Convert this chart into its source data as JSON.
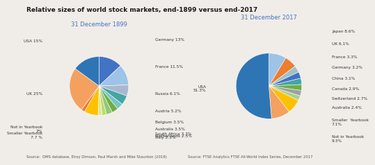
{
  "title": "Relative sizes of world stock markets, end-1899 versus end-2017",
  "title_fontsize": 6.5,
  "bg_color": "#f0ede8",
  "chart1_subtitle": "31 December 1899",
  "chart2_subtitle": "31 December 2017",
  "chart1_source": "Source:  DMS database, Elroy Dimson, Paul Marsh and Mike Staunton (2018)",
  "chart2_source": "Source: FTSE Analytics FTSE All-World Index Series, December 2017",
  "chart1_values": [
    13,
    11.5,
    6.1,
    5.2,
    3.5,
    3.5,
    3.3,
    2.5,
    2.1,
    7.7,
    2,
    25,
    15
  ],
  "chart1_colors": [
    "#4472c4",
    "#9dc3e6",
    "#a9b8d0",
    "#44a5a5",
    "#77c5c5",
    "#70ad47",
    "#90c878",
    "#c0d870",
    "#d8e890",
    "#ffc000",
    "#ed7d31",
    "#f4a160",
    "#2e75b6"
  ],
  "chart1_label_texts": [
    "Germany 13%",
    "France 11.5%",
    "Russia 6.1%",
    "Austria 5.2%",
    "Belgium 3.5%",
    "Australia 3.5%",
    "South Africa 3.3%",
    "Netherlands 2.5%",
    "Italy 2.1%",
    "Smaller Yearbook\n7.7 %",
    "Not in Yearbook\n2%",
    "UK 25%",
    "USA 15%"
  ],
  "chart2_values": [
    8.6,
    6.1,
    3.3,
    3.2,
    3.1,
    2.9,
    2.7,
    2.4,
    7.1,
    9.3,
    51.3
  ],
  "chart2_colors": [
    "#9dc3e6",
    "#ed7d31",
    "#9dc3c8",
    "#4472c4",
    "#44a5a5",
    "#70ad47",
    "#a0a0a0",
    "#a9d18e",
    "#ffc000",
    "#f4a160",
    "#2e75b6"
  ],
  "chart2_label_texts": [
    "Japan 8.6%",
    "UK 6.1%",
    "France 3.3%",
    "Germany 3.2%",
    "China 3.1%",
    "Canada 2.9%",
    "Switzerland 2.7%",
    "Australia 2.4%",
    "Smaller  Yearbook\n7.1%",
    "Not in Yearbook\n9.3%",
    "USA\n51.3%"
  ],
  "subtitle_color": "#4472c4",
  "subtitle_fontsize": 6.0,
  "label_fontsize": 4.2,
  "source_fontsize": 3.8
}
